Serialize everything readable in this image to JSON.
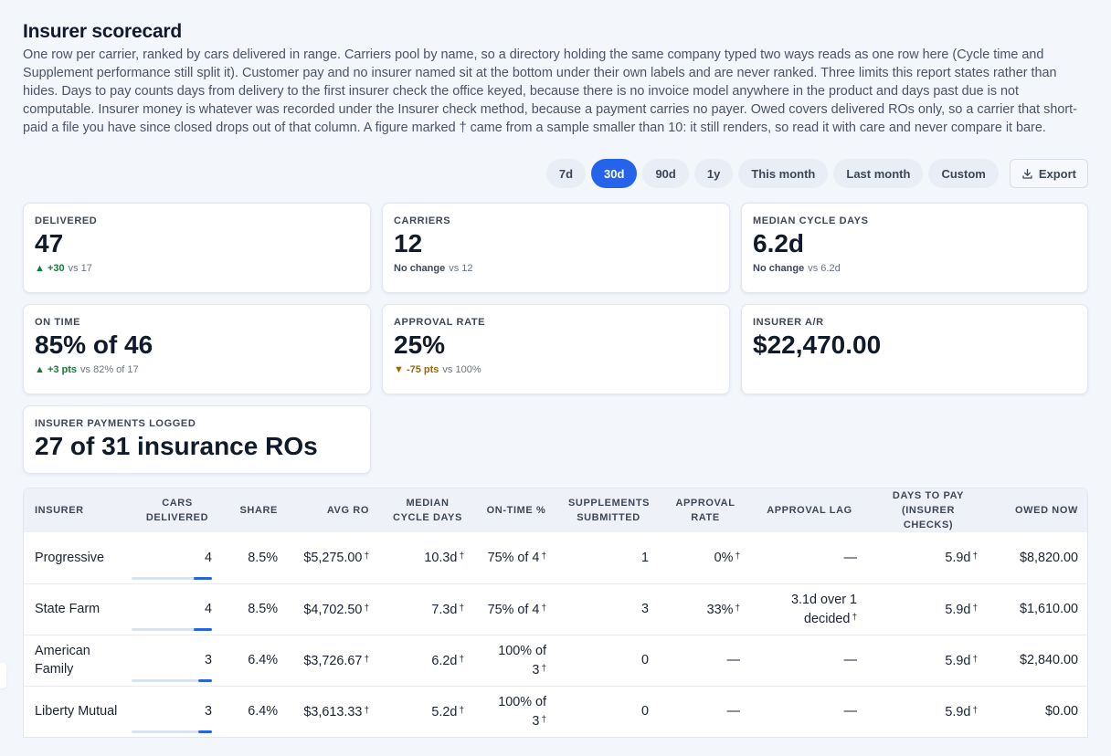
{
  "title": "Insurer scorecard",
  "description": "One row per carrier, ranked by cars delivered in range. Carriers pool by name, so a directory holding the same company typed two ways reads as one row here (Cycle time and Supplement performance still split it). Customer pay and no insurer named sit at the bottom under their own labels and are never ranked. Three limits this report states rather than hides. Days to pay counts days from delivery to the first insurer check the office keyed, because there is no invoice model anywhere in the product and days past due is not computable. Insurer money is whatever was recorded under the Insurer check method, because a payment carries no payer. Owed covers delivered ROs only, so a carrier that short-paid a file you have since closed drops out of that column. A figure marked † came from a sample smaller than 10: it still renders, so read it with care and never compare it bare.",
  "ranges": [
    "7d",
    "30d",
    "90d",
    "1y",
    "This month",
    "Last month",
    "Custom"
  ],
  "active_range": "30d",
  "export_label": "Export",
  "cards": {
    "delivered": {
      "label": "DELIVERED",
      "value": "47",
      "delta": "▲ +30",
      "vs": "vs 17"
    },
    "carriers": {
      "label": "CARRIERS",
      "value": "12",
      "delta": "No change",
      "vs": "vs 12"
    },
    "median_cycle": {
      "label": "MEDIAN CYCLE DAYS",
      "value": "6.2d",
      "delta": "No change",
      "vs": "vs 6.2d"
    },
    "on_time": {
      "label": "ON TIME",
      "value": "85% of 46",
      "delta": "▲ +3 pts",
      "vs": "vs 82% of 17"
    },
    "approval_rate": {
      "label": "APPROVAL RATE",
      "value": "25%",
      "delta": "▼ -75 pts",
      "vs": "vs 100%"
    },
    "insurer_ar": {
      "label": "INSURER A/R",
      "value": "$22,470.00"
    },
    "payments_logged": {
      "label": "INSURER PAYMENTS LOGGED",
      "value": "27 of 31 insurance ROs"
    }
  },
  "table": {
    "headers": {
      "insurer": "INSURER",
      "cars": "CARS DELIVERED",
      "share": "SHARE",
      "avg_ro": "AVG RO",
      "median_cycle": "MEDIAN CYCLE DAYS",
      "on_time": "ON-TIME %",
      "supplements": "SUPPLEMENTS SUBMITTED",
      "approval_rate": "APPROVAL RATE",
      "approval_lag": "APPROVAL LAG",
      "days_to_pay": "DAYS TO PAY (INSURER CHECKS)",
      "owed": "OWED NOW"
    },
    "dagger": "†",
    "rows": [
      {
        "insurer": "Progressive",
        "cars": "4",
        "cars_frac": 1.0,
        "share": "8.5%",
        "avg_ro": "$5,275.00",
        "median_cycle": "10.3d",
        "on_time": "75% of 4",
        "supplements": "1",
        "approval_rate": "0%",
        "approval_lag": "—",
        "days_to_pay": "5.9d",
        "owed": "$8,820.00"
      },
      {
        "insurer": "State Farm",
        "cars": "4",
        "cars_frac": 1.0,
        "share": "8.5%",
        "avg_ro": "$4,702.50",
        "median_cycle": "7.3d",
        "on_time": "75% of 4",
        "supplements": "3",
        "approval_rate": "33%",
        "approval_lag": "3.1d over 1 decided",
        "days_to_pay": "5.9d",
        "owed": "$1,610.00"
      },
      {
        "insurer": "American Family",
        "cars": "3",
        "cars_frac": 0.75,
        "share": "6.4%",
        "avg_ro": "$3,726.67",
        "median_cycle": "6.2d",
        "on_time": "100% of 3",
        "supplements": "0",
        "approval_rate": "—",
        "approval_lag": "—",
        "days_to_pay": "5.9d",
        "owed": "$2,840.00"
      },
      {
        "insurer": "Liberty Mutual",
        "cars": "3",
        "cars_frac": 0.75,
        "share": "6.4%",
        "avg_ro": "$3,613.33",
        "median_cycle": "5.2d",
        "on_time": "100% of 3",
        "supplements": "0",
        "approval_rate": "—",
        "approval_lag": "—",
        "days_to_pay": "5.9d",
        "owed": "$0.00"
      }
    ]
  }
}
